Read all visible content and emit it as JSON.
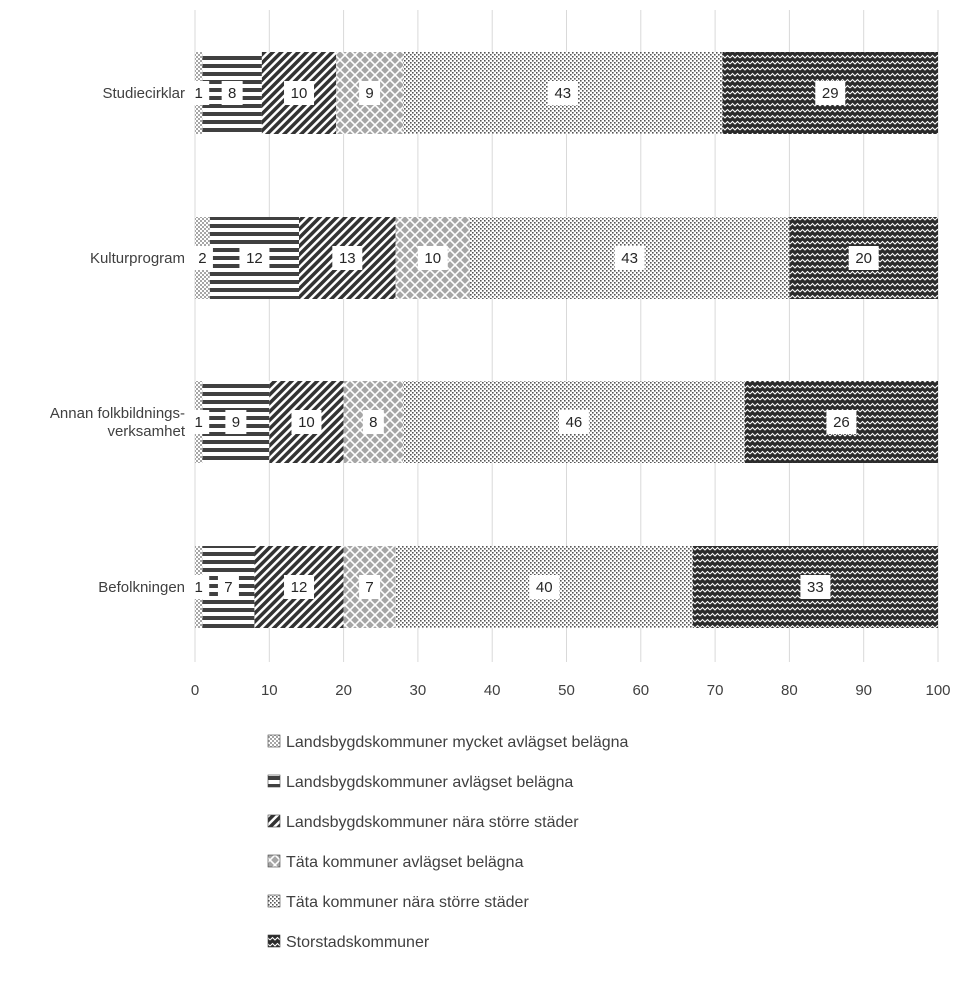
{
  "chart_data": {
    "type": "bar",
    "orientation": "horizontal",
    "stacked": true,
    "categories": [
      [
        "Studiecirklar"
      ],
      [
        "Kulturprogram"
      ],
      [
        "Annan folkbildnings-",
        "verksamhet"
      ],
      [
        "Befolkningen"
      ]
    ],
    "series": [
      {
        "name": "Landsbygdskommuner mycket avlägset belägna",
        "values": [
          1,
          2,
          1,
          1
        ],
        "pattern": "dots-light"
      },
      {
        "name": "Landsbygdskommuner avlägset belägna",
        "values": [
          8,
          12,
          9,
          7
        ],
        "pattern": "hlines"
      },
      {
        "name": "Landsbygdskommuner nära större städer",
        "values": [
          10,
          13,
          10,
          12
        ],
        "pattern": "diag"
      },
      {
        "name": "Täta kommuner avlägset belägna",
        "values": [
          9,
          10,
          8,
          7
        ],
        "pattern": "cross"
      },
      {
        "name": "Täta kommuner nära större städer",
        "values": [
          43,
          43,
          46,
          40
        ],
        "pattern": "dots"
      },
      {
        "name": "Storstadskommuner",
        "values": [
          29,
          20,
          26,
          33
        ],
        "pattern": "wave"
      }
    ],
    "xlim": [
      0,
      100
    ],
    "xticks": [
      "0",
      "10",
      "20",
      "30",
      "40",
      "50",
      "60",
      "70",
      "80",
      "90",
      "100"
    ],
    "grid": true,
    "legend_position": "bottom"
  }
}
